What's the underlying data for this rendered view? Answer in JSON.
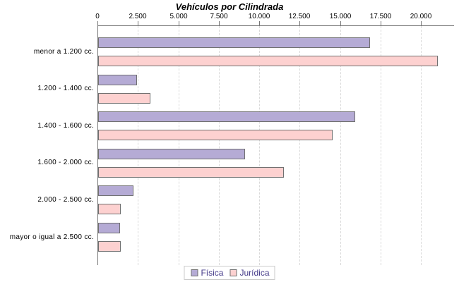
{
  "chart_data": {
    "type": "bar",
    "orientation": "horizontal",
    "title": "Vehículos por Cilindrada",
    "categories": [
      "menor a 1.200 cc.",
      "1.200 - 1.400 cc.",
      "1.400 - 1.600 cc.",
      "1.600 - 2.000 cc.",
      "2.000 - 2.500 cc.",
      "mayor o igual a 2.500 cc."
    ],
    "series": [
      {
        "name": "Física",
        "color": "#b5abd5",
        "values": [
          16800,
          2400,
          15900,
          9100,
          2200,
          1350
        ]
      },
      {
        "name": "Jurídica",
        "color": "#fdd1d0",
        "values": [
          21000,
          3250,
          14500,
          11500,
          1400,
          1400
        ]
      }
    ],
    "x_axis": {
      "tick_labels": [
        "0",
        "2.500",
        "5.000",
        "7.500",
        "10.000",
        "12.500",
        "15.000",
        "17.500",
        "20.000"
      ],
      "tick_values": [
        0,
        2500,
        5000,
        7500,
        10000,
        12500,
        15000,
        17500,
        20000
      ],
      "min": 0,
      "max": 22000
    },
    "grid": "vertical-dashed",
    "legend": {
      "position": "bottom",
      "entries": [
        "Física",
        "Jurídica"
      ],
      "text_color": "#473d8b"
    },
    "colors": {
      "bar_border": "#707070",
      "axis": "#757575"
    }
  }
}
